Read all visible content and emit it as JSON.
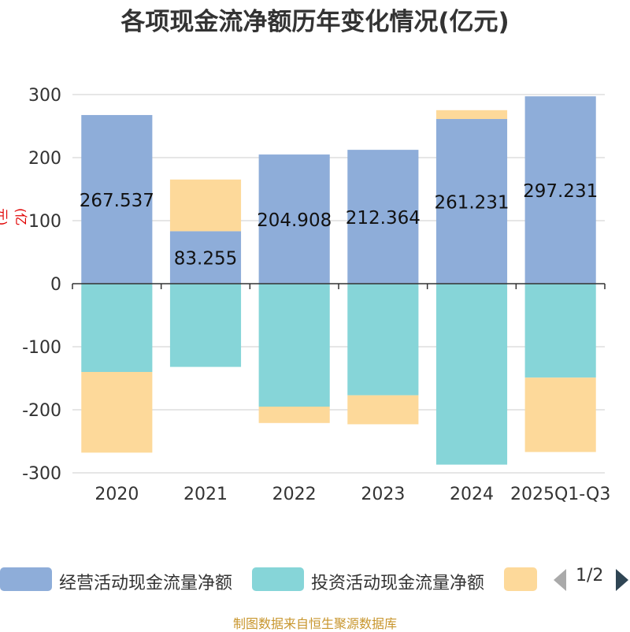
{
  "chart_data": {
    "type": "bar",
    "stacked": true,
    "title": "各项现金流净额历年变化情况(亿元)",
    "ylabel": "(亿元)",
    "ylim": [
      -300,
      300
    ],
    "yticks": [
      300,
      200,
      100,
      0,
      -100,
      -200,
      -300
    ],
    "categories": [
      "2020",
      "2021",
      "2022",
      "2023",
      "2024",
      "2025Q1-Q3"
    ],
    "grid": true,
    "legend_position": "bottom",
    "series": [
      {
        "name": "经营活动现金流量净额",
        "color": "#8eadd9",
        "values": [
          267.537,
          83.255,
          204.908,
          212.364,
          261.231,
          297.231
        ],
        "labels": [
          "267.537",
          "83.255",
          "204.908",
          "212.364",
          "261.231",
          "297.231"
        ]
      },
      {
        "name": "投资活动现金流量净额",
        "color": "#86d5d8",
        "values": [
          -140,
          -132,
          -195,
          -177,
          -287,
          -149
        ]
      },
      {
        "name": "",
        "color": "#fdd99a",
        "values": [
          -128,
          82,
          -26,
          -46,
          14,
          -118
        ]
      }
    ]
  },
  "legend": {
    "item1": "经营活动现金流量净额",
    "item2": "投资活动现金流量净额",
    "item3": ""
  },
  "pager": {
    "text": "1/2"
  },
  "footer": {
    "source": "制图数据来自恒生聚源数据库"
  }
}
